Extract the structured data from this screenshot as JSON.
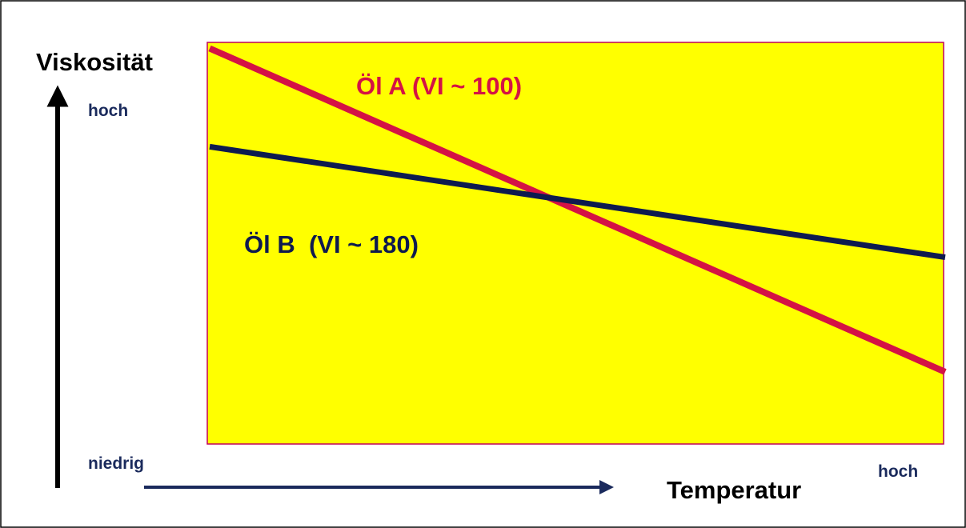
{
  "colors": {
    "plot_background": "#ffff00",
    "plot_border": "#c0005a",
    "oil_a": "#d41245",
    "oil_b": "#0e1a4f",
    "axis_arrow_vertical": "#000000",
    "axis_arrow_horizontal": "#1a2a5c",
    "tick_text": "#1a2a5c",
    "axis_title": "#000000"
  },
  "labels": {
    "ylabel": "Viskosität",
    "xlabel": "Temperatur",
    "y_high": "hoch",
    "low": "niedrig",
    "x_high": "hoch"
  },
  "chart_data": {
    "type": "line",
    "title": "",
    "xlabel": "Temperatur",
    "ylabel": "Viskosität",
    "xlim": [
      0,
      1
    ],
    "ylim": [
      0,
      1
    ],
    "grid": false,
    "legend": "none",
    "series": [
      {
        "name": "Öl A (VI ~ 100)",
        "color": "#d41245",
        "x": [
          0,
          1
        ],
        "y": [
          0.96,
          0.17
        ]
      },
      {
        "name": "Öl B  (VI ~ 180)",
        "color": "#0e1a4f",
        "x": [
          0,
          1
        ],
        "y": [
          0.72,
          0.45
        ]
      }
    ]
  }
}
